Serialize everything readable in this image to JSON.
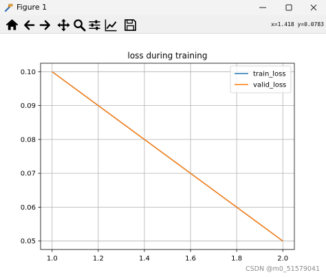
{
  "window": {
    "title": "Figure 1",
    "controls": [
      "minimize",
      "maximize",
      "close"
    ]
  },
  "toolbar": {
    "buttons": [
      {
        "name": "home",
        "icon": "home-icon"
      },
      {
        "name": "back",
        "icon": "arrow-left-icon"
      },
      {
        "name": "forward",
        "icon": "arrow-right-icon"
      },
      {
        "name": "pan",
        "icon": "move-icon"
      },
      {
        "name": "zoom",
        "icon": "zoom-icon"
      },
      {
        "name": "subplots",
        "icon": "sliders-icon"
      },
      {
        "name": "edit-axes",
        "icon": "line-chart-icon"
      },
      {
        "name": "save",
        "icon": "save-icon"
      }
    ],
    "coordinates": "x=1.418 y=0.0783"
  },
  "watermark": "CSDN @m0_51579041",
  "chart_data": {
    "type": "line",
    "title": "loss during training",
    "xlabel": "",
    "ylabel": "",
    "xlim": [
      0.95,
      2.05
    ],
    "ylim": [
      0.0475,
      0.1025
    ],
    "xticks": [
      1.0,
      1.2,
      1.4,
      1.6,
      1.8,
      2.0
    ],
    "xtick_labels": [
      "1.0",
      "1.2",
      "1.4",
      "1.6",
      "1.8",
      "2.0"
    ],
    "yticks": [
      0.05,
      0.06,
      0.07,
      0.08,
      0.09,
      0.1
    ],
    "ytick_labels": [
      "0.05",
      "0.06",
      "0.07",
      "0.08",
      "0.09",
      "0.10"
    ],
    "grid": true,
    "legend_position": "top-right",
    "series": [
      {
        "name": "train_loss",
        "color": "#1f77b4",
        "x": [
          1,
          2
        ],
        "y": [
          0.1,
          0.05
        ]
      },
      {
        "name": "valid_loss",
        "color": "#ff7f0e",
        "x": [
          1,
          2
        ],
        "y": [
          0.1,
          0.05
        ]
      }
    ]
  }
}
